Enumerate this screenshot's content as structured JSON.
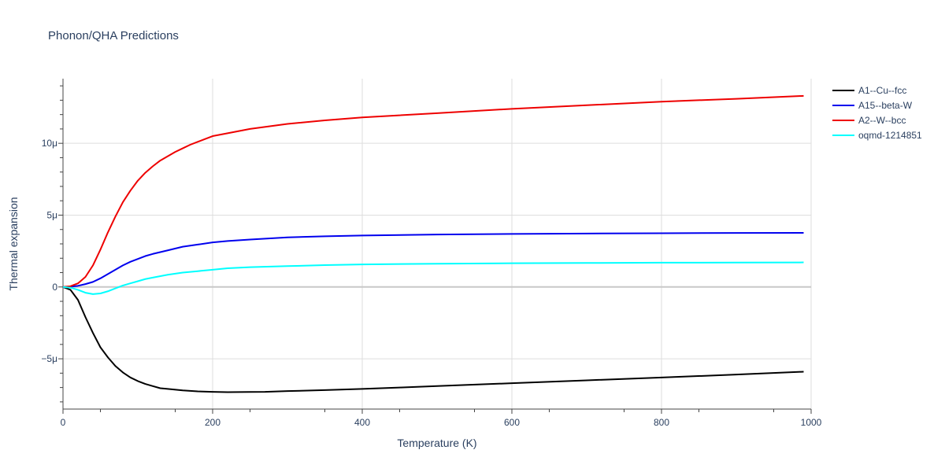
{
  "chart_data": {
    "type": "line",
    "title": "Phonon/QHA Predictions",
    "xlabel": "Temperature (K)",
    "ylabel": "Thermal expansion",
    "xlim": [
      0,
      1000
    ],
    "ylim": [
      -8.5,
      14.5
    ],
    "x_ticks": [
      0,
      200,
      400,
      600,
      800,
      1000
    ],
    "x_tick_labels": [
      "0",
      "200",
      "400",
      "600",
      "800",
      "1000"
    ],
    "y_ticks": [
      -5,
      0,
      5,
      10
    ],
    "y_tick_labels": [
      "−5μ",
      "0",
      "5μ",
      "10μ"
    ],
    "y_unit": "μ (1e-6 per K)",
    "grid": true,
    "legend_position": "top-right, outside plot",
    "series": [
      {
        "name": "A1--Cu--fcc",
        "color": "#000000",
        "x": [
          0,
          10,
          20,
          30,
          40,
          50,
          60,
          70,
          80,
          90,
          100,
          110,
          120,
          130,
          140,
          160,
          180,
          200,
          220,
          250,
          270,
          300,
          350,
          400,
          450,
          500,
          600,
          700,
          800,
          900,
          990
        ],
        "y": [
          0,
          -0.2,
          -0.9,
          -2.1,
          -3.2,
          -4.2,
          -4.9,
          -5.5,
          -5.95,
          -6.3,
          -6.55,
          -6.75,
          -6.9,
          -7.05,
          -7.1,
          -7.2,
          -7.27,
          -7.3,
          -7.32,
          -7.31,
          -7.3,
          -7.25,
          -7.18,
          -7.1,
          -7.0,
          -6.9,
          -6.7,
          -6.5,
          -6.3,
          -6.1,
          -5.9
        ]
      },
      {
        "name": "A15--beta-W",
        "color": "#0000ee",
        "x": [
          0,
          10,
          20,
          30,
          40,
          50,
          60,
          70,
          80,
          90,
          100,
          110,
          120,
          140,
          160,
          180,
          200,
          220,
          250,
          300,
          350,
          400,
          500,
          600,
          700,
          800,
          900,
          990
        ],
        "y": [
          0,
          0.02,
          0.08,
          0.2,
          0.35,
          0.6,
          0.9,
          1.2,
          1.5,
          1.75,
          1.95,
          2.15,
          2.3,
          2.55,
          2.8,
          2.95,
          3.1,
          3.2,
          3.3,
          3.45,
          3.53,
          3.58,
          3.65,
          3.69,
          3.72,
          3.74,
          3.76,
          3.77
        ]
      },
      {
        "name": "A2--W--bcc",
        "color": "#ee0000",
        "x": [
          0,
          10,
          20,
          30,
          40,
          50,
          60,
          70,
          80,
          90,
          100,
          110,
          120,
          130,
          140,
          150,
          160,
          170,
          180,
          190,
          200,
          220,
          250,
          300,
          350,
          400,
          500,
          600,
          700,
          800,
          900,
          990
        ],
        "y": [
          0,
          0.05,
          0.25,
          0.7,
          1.5,
          2.6,
          3.8,
          4.9,
          5.9,
          6.7,
          7.4,
          7.95,
          8.4,
          8.8,
          9.1,
          9.4,
          9.65,
          9.9,
          10.1,
          10.3,
          10.5,
          10.7,
          11.0,
          11.35,
          11.6,
          11.8,
          12.1,
          12.4,
          12.65,
          12.9,
          13.1,
          13.3
        ]
      },
      {
        "name": "oqmd-1214851",
        "color": "#00ffff",
        "x": [
          0,
          10,
          20,
          30,
          40,
          50,
          60,
          70,
          80,
          90,
          100,
          110,
          120,
          140,
          160,
          180,
          200,
          220,
          250,
          300,
          350,
          400,
          500,
          600,
          700,
          800,
          900,
          990
        ],
        "y": [
          0,
          -0.05,
          -0.2,
          -0.4,
          -0.5,
          -0.45,
          -0.3,
          -0.1,
          0.1,
          0.25,
          0.4,
          0.55,
          0.65,
          0.85,
          1.0,
          1.1,
          1.2,
          1.3,
          1.38,
          1.45,
          1.52,
          1.57,
          1.62,
          1.65,
          1.67,
          1.69,
          1.7,
          1.71
        ]
      }
    ]
  }
}
